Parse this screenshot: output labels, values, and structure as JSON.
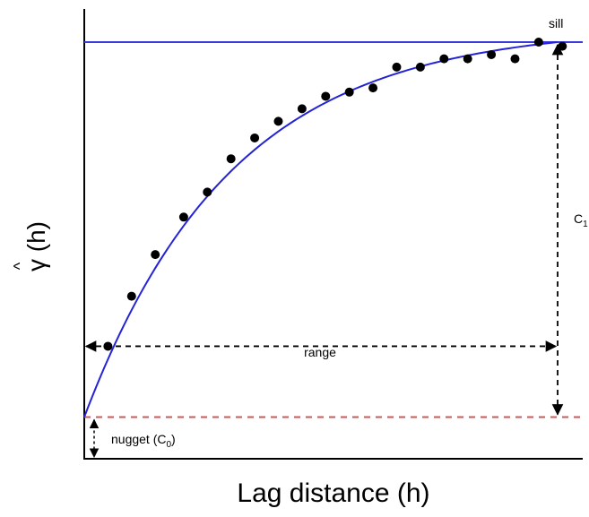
{
  "chart_data": {
    "type": "scatter",
    "title": "",
    "xlabel": "Lag distance (h)",
    "ylabel": "γ (h)",
    "ylabel_hat": "^",
    "xlim": [
      0,
      1
    ],
    "ylim": [
      0,
      1
    ],
    "grid": false,
    "legend": "none",
    "colors": {
      "model_curve": "#2424d6",
      "sill_line": "#3b3bd9",
      "nugget_line": "#cc5a5a",
      "points": "#000000",
      "annotation_arrows": "#000000"
    },
    "model": {
      "type": "exponential",
      "nugget": 0.1,
      "sill": 1.0,
      "range": 1.0
    },
    "points": [
      {
        "x": 0.05,
        "y": 0.27
      },
      {
        "x": 0.1,
        "y": 0.39
      },
      {
        "x": 0.15,
        "y": 0.49
      },
      {
        "x": 0.21,
        "y": 0.58
      },
      {
        "x": 0.26,
        "y": 0.64
      },
      {
        "x": 0.31,
        "y": 0.72
      },
      {
        "x": 0.36,
        "y": 0.77
      },
      {
        "x": 0.41,
        "y": 0.81
      },
      {
        "x": 0.46,
        "y": 0.84
      },
      {
        "x": 0.51,
        "y": 0.87
      },
      {
        "x": 0.56,
        "y": 0.88
      },
      {
        "x": 0.61,
        "y": 0.89
      },
      {
        "x": 0.66,
        "y": 0.94
      },
      {
        "x": 0.71,
        "y": 0.94
      },
      {
        "x": 0.76,
        "y": 0.96
      },
      {
        "x": 0.81,
        "y": 0.96
      },
      {
        "x": 0.86,
        "y": 0.97
      },
      {
        "x": 0.91,
        "y": 0.96
      },
      {
        "x": 0.96,
        "y": 1.0
      },
      {
        "x": 1.01,
        "y": 0.99
      }
    ],
    "annotations": {
      "sill": "sill",
      "range": "range",
      "nugget": "nugget (C",
      "nugget_sub": "0",
      "c_label": "C",
      "c_sub": "1"
    }
  }
}
